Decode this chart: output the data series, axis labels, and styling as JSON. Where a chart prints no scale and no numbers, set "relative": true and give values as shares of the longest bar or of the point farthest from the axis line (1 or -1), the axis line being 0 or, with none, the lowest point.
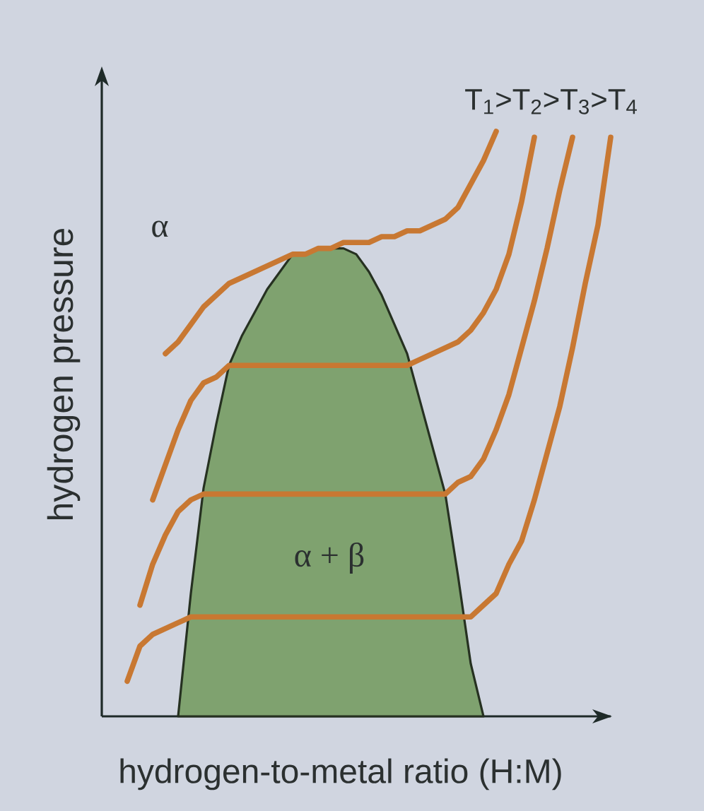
{
  "chart_data": {
    "type": "line",
    "relative": true,
    "xlabel": "hydrogen-to-metal ratio (H:M)",
    "ylabel": "hydrogen pressure",
    "annotations": [
      "α",
      "α + β",
      "T$_{1}$>T$_{2}$>T$_{3}$>T$_{4}$"
    ],
    "categories": [
      null,
      null,
      null,
      null,
      null,
      null,
      null,
      null,
      null,
      null,
      null,
      null,
      null,
      null,
      null,
      null,
      null,
      null,
      null,
      null,
      null,
      null,
      null,
      null,
      null,
      null,
      null,
      null,
      null,
      null,
      null,
      null,
      null,
      null,
      null,
      null,
      null,
      null,
      null,
      null,
      null
    ],
    "series": [
      {
        "type": "area",
        "color": "#7fa26f",
        "values": [
          null,
          null,
          null,
          null,
          null,
          null,
          0,
          0.21,
          0.39,
          0.5,
          0.6,
          0.65,
          0.69,
          0.73,
          0.76,
          0.79,
          0.79,
          0.8,
          0.8,
          0.8,
          0.79,
          0.76,
          0.72,
          0.67,
          0.62,
          0.54,
          0.46,
          0.38,
          0.24,
          0.09,
          0,
          null,
          null,
          null,
          null,
          null,
          null,
          null,
          null,
          null,
          null
        ]
      },
      {
        "color": "#c87832",
        "values": [
          null,
          null,
          null,
          null,
          null,
          0.62,
          0.64,
          0.67,
          0.7,
          0.72,
          0.74,
          0.75,
          0.76,
          0.77,
          0.78,
          0.79,
          0.79,
          0.8,
          0.8,
          0.81,
          0.81,
          0.81,
          0.82,
          0.82,
          0.83,
          0.83,
          0.84,
          0.85,
          0.87,
          0.91,
          0.95,
          1.0,
          null,
          null,
          null,
          null,
          null,
          null,
          null,
          null,
          null
        ]
      },
      {
        "color": "#c87832",
        "values": [
          null,
          null,
          null,
          null,
          0.37,
          0.43,
          0.49,
          0.54,
          0.57,
          0.58,
          0.6,
          0.6,
          0.6,
          0.6,
          0.6,
          0.6,
          0.6,
          0.6,
          0.6,
          0.6,
          0.6,
          0.6,
          0.6,
          0.6,
          0.6,
          0.61,
          0.62,
          0.63,
          0.64,
          0.66,
          0.69,
          0.73,
          0.79,
          0.88,
          0.99,
          null,
          null,
          null,
          null,
          null,
          null
        ]
      },
      {
        "color": "#c87832",
        "values": [
          null,
          null,
          null,
          0.19,
          0.26,
          0.31,
          0.35,
          0.37,
          0.38,
          0.38,
          0.38,
          0.38,
          0.38,
          0.38,
          0.38,
          0.38,
          0.38,
          0.38,
          0.38,
          0.38,
          0.38,
          0.38,
          0.38,
          0.38,
          0.38,
          0.38,
          0.38,
          0.38,
          0.4,
          0.41,
          0.44,
          0.49,
          0.55,
          0.63,
          0.71,
          0.8,
          0.9,
          0.99,
          null,
          null,
          null
        ]
      },
      {
        "color": "#c87832",
        "values": [
          null,
          null,
          0.06,
          0.12,
          0.14,
          0.15,
          0.16,
          0.17,
          0.17,
          0.17,
          0.17,
          0.17,
          0.17,
          0.17,
          0.17,
          0.17,
          0.17,
          0.17,
          0.17,
          0.17,
          0.17,
          0.17,
          0.17,
          0.17,
          0.17,
          0.17,
          0.17,
          0.17,
          0.17,
          0.17,
          0.19,
          0.21,
          0.26,
          0.3,
          0.37,
          0.45,
          0.53,
          0.63,
          0.74,
          0.84,
          0.99
        ]
      }
    ]
  }
}
